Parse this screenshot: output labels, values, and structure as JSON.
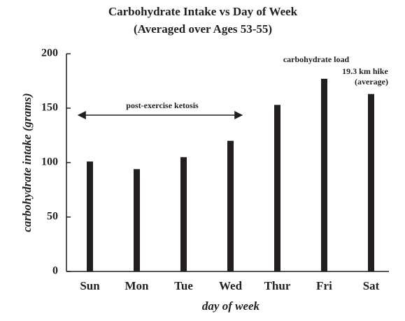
{
  "chart_data": {
    "type": "bar",
    "title": [
      "Carbohydrate Intake vs Day of Week",
      "(Averaged over Ages 53-55)"
    ],
    "x_label": "day of week",
    "y_label": "carbohydrate intake (grams)",
    "categories": [
      "Sun",
      "Mon",
      "Tue",
      "Wed",
      "Thur",
      "Fri",
      "Sat"
    ],
    "values": [
      101,
      94,
      105,
      120,
      153,
      177,
      163
    ],
    "color": "#231f20",
    "ylim": [
      0,
      200
    ],
    "yticks": [
      0,
      50,
      100,
      150,
      200
    ],
    "grid": false,
    "annotations": [
      "post-exercise ketosis",
      "carbohydrate load",
      "19.3 km hike",
      "(average)"
    ]
  }
}
